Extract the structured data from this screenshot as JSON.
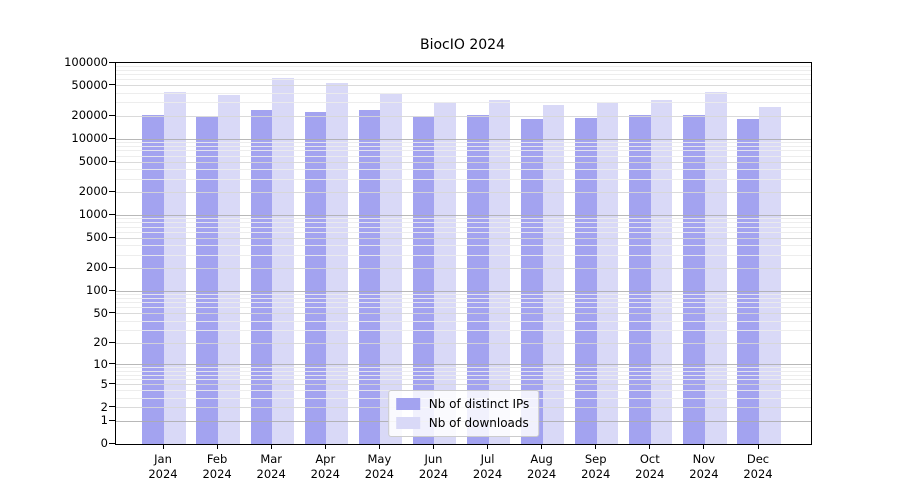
{
  "chart_data": {
    "type": "bar",
    "title": "BiocIO 2024",
    "categories": [
      "Jan",
      "Feb",
      "Mar",
      "Apr",
      "May",
      "Jun",
      "Jul",
      "Aug",
      "Sep",
      "Oct",
      "Nov",
      "Dec"
    ],
    "category_year": "2024",
    "series": [
      {
        "name": "Nb of distinct IPs",
        "color": "#a3a3f0",
        "values": [
          20500,
          19500,
          24000,
          23000,
          24300,
          19800,
          21000,
          18300,
          19000,
          20800,
          20700,
          18600
        ]
      },
      {
        "name": "Nb of downloads",
        "color": "#d9d9f7",
        "values": [
          42000,
          38500,
          64000,
          55000,
          39000,
          30500,
          32500,
          28500,
          29500,
          32500,
          42000,
          26500
        ]
      }
    ],
    "y_scale": "log1p",
    "y_ticks": [
      0,
      1,
      2,
      5,
      10,
      20,
      50,
      100,
      200,
      500,
      1000,
      2000,
      5000,
      10000,
      20000,
      50000,
      100000
    ],
    "ylim": [
      0,
      100000
    ],
    "grid": "horizontal-major-and-minor",
    "legend_position": "lower-center"
  }
}
